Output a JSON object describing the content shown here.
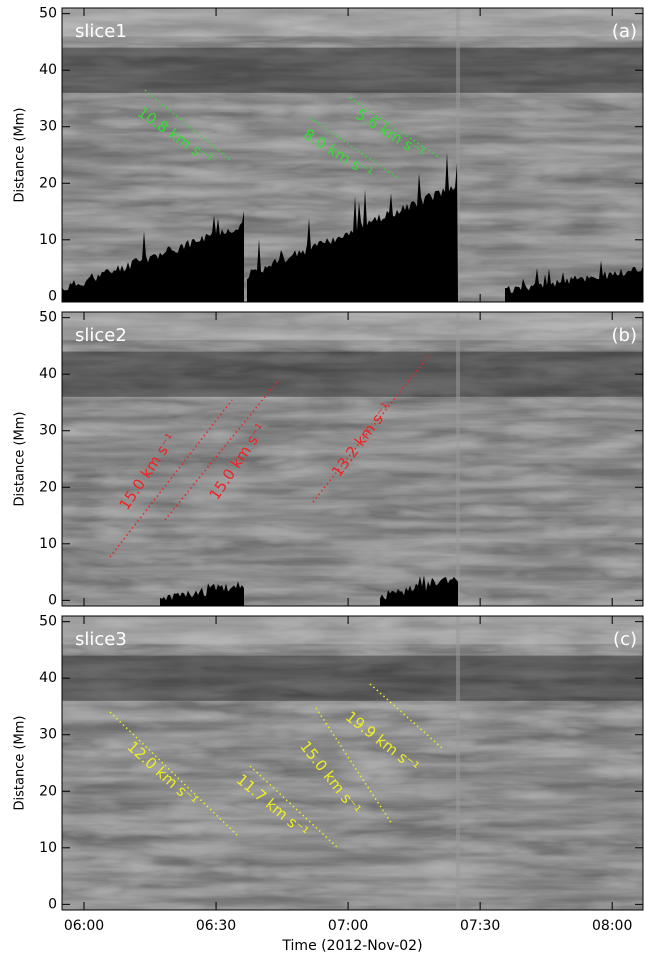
{
  "chart_data": [
    {
      "type": "image",
      "label": "slice1",
      "panel": "(a)",
      "ylabel": "Distance (Mm)",
      "ylim": [
        -1,
        51
      ],
      "yticks": [
        0,
        10,
        20,
        30,
        40,
        50
      ],
      "annotations": [
        {
          "text": "10.8 km s⁻¹",
          "color": "#33dd33"
        },
        {
          "text": "5.6 km s⁻¹",
          "color": "#33dd33"
        },
        {
          "text": "8.0 km s⁻¹",
          "color": "#33dd33"
        }
      ]
    },
    {
      "type": "image",
      "label": "slice2",
      "panel": "(b)",
      "ylabel": "Distance (Mm)",
      "ylim": [
        -1,
        51
      ],
      "yticks": [
        0,
        10,
        20,
        30,
        40,
        50
      ],
      "annotations": [
        {
          "text": "15.0 km s⁻¹",
          "color": "#ee2222"
        },
        {
          "text": "15.0 km s⁻¹",
          "color": "#ee2222"
        },
        {
          "text": "13.2 km s⁻¹",
          "color": "#ee2222"
        }
      ]
    },
    {
      "type": "image",
      "label": "slice3",
      "panel": "(c)",
      "ylabel": "Distance (Mm)",
      "ylim": [
        -1,
        51
      ],
      "yticks": [
        0,
        10,
        20,
        30,
        40,
        50
      ],
      "xlabel": "Time (2012-Nov-02)",
      "xlim": [
        "05:55",
        "08:07"
      ],
      "xticks": [
        "06:00",
        "06:30",
        "07:00",
        "07:30",
        "08:00"
      ],
      "annotations": [
        {
          "text": "12.0 km s⁻¹",
          "color": "#eeee22"
        },
        {
          "text": "11.7 km s⁻¹",
          "color": "#eeee22"
        },
        {
          "text": "15.0 km s⁻¹",
          "color": "#eeee22"
        },
        {
          "text": "19.9 km s⁻¹",
          "color": "#eeee22"
        }
      ]
    }
  ]
}
